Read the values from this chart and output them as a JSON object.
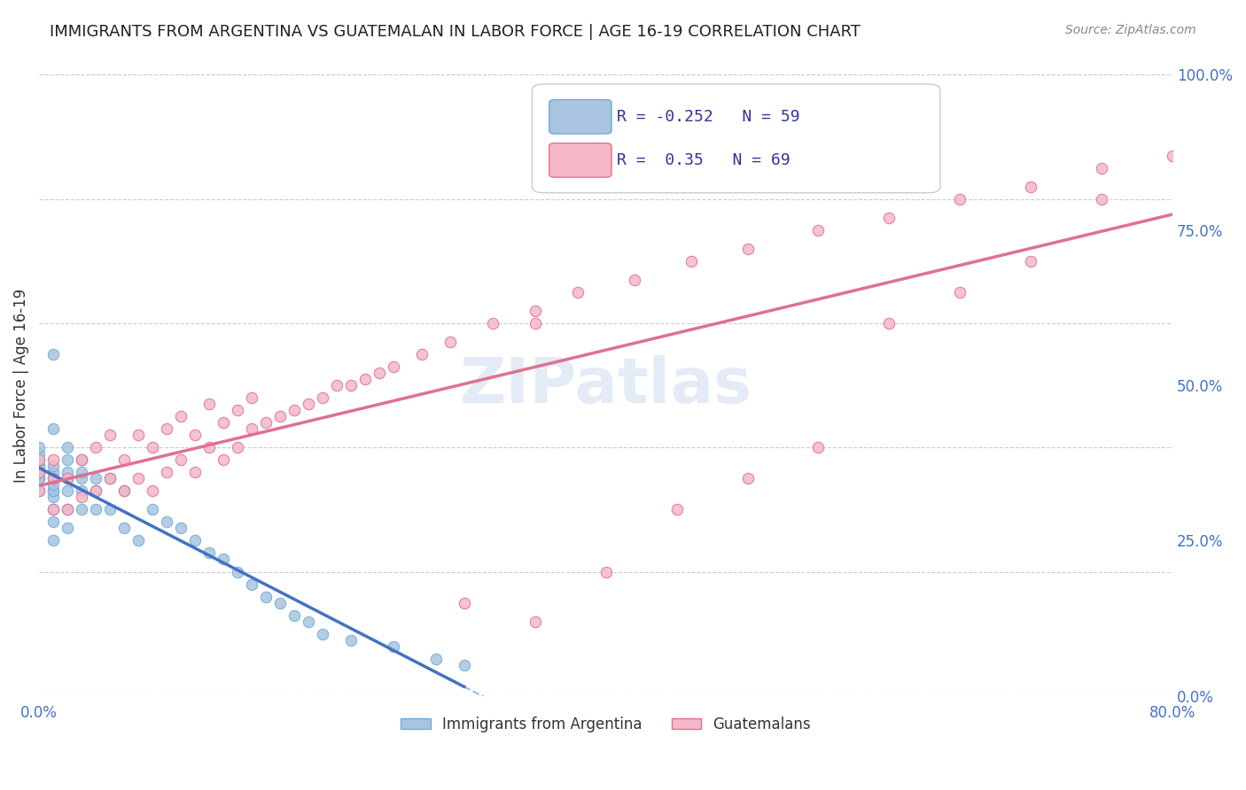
{
  "title": "IMMIGRANTS FROM ARGENTINA VS GUATEMALAN IN LABOR FORCE | AGE 16-19 CORRELATION CHART",
  "source": "Source: ZipAtlas.com",
  "xlabel": "",
  "ylabel": "In Labor Force | Age 16-19",
  "xlim": [
    0.0,
    0.8
  ],
  "ylim": [
    0.0,
    1.0
  ],
  "yticks": [
    0.0,
    0.25,
    0.5,
    0.75,
    1.0
  ],
  "ytick_labels": [
    "0.0%",
    "25.0%",
    "50.0%",
    "75.0%",
    "100.0%"
  ],
  "xticks": [
    0.0,
    0.1,
    0.2,
    0.3,
    0.4,
    0.5,
    0.6,
    0.7,
    0.8
  ],
  "xtick_labels": [
    "0.0%",
    "",
    "",
    "",
    "",
    "",
    "",
    "",
    "80.0%"
  ],
  "argentina_color": "#a8c4e0",
  "argentina_edge": "#6baed6",
  "guatemalan_color": "#f4b8c8",
  "guatemalan_edge": "#e07090",
  "argentina_R": -0.252,
  "argentina_N": 59,
  "guatemalan_R": 0.35,
  "guatemalan_N": 69,
  "legend_label_argentina": "Immigrants from Argentina",
  "legend_label_guatemalan": "Guatemalans",
  "watermark": "ZIPatlas",
  "argentina_scatter_x": [
    0.0,
    0.0,
    0.0,
    0.0,
    0.0,
    0.0,
    0.0,
    0.0,
    0.0,
    0.0,
    0.01,
    0.01,
    0.01,
    0.01,
    0.01,
    0.01,
    0.01,
    0.01,
    0.01,
    0.01,
    0.01,
    0.01,
    0.02,
    0.02,
    0.02,
    0.02,
    0.02,
    0.02,
    0.02,
    0.03,
    0.03,
    0.03,
    0.03,
    0.03,
    0.04,
    0.04,
    0.04,
    0.05,
    0.05,
    0.06,
    0.06,
    0.07,
    0.08,
    0.09,
    0.1,
    0.11,
    0.12,
    0.13,
    0.14,
    0.15,
    0.16,
    0.17,
    0.18,
    0.19,
    0.2,
    0.22,
    0.25,
    0.28,
    0.3
  ],
  "argentina_scatter_y": [
    0.33,
    0.35,
    0.35,
    0.36,
    0.36,
    0.37,
    0.37,
    0.38,
    0.39,
    0.4,
    0.25,
    0.28,
    0.3,
    0.32,
    0.33,
    0.33,
    0.34,
    0.35,
    0.36,
    0.37,
    0.43,
    0.55,
    0.27,
    0.3,
    0.33,
    0.35,
    0.36,
    0.38,
    0.4,
    0.3,
    0.33,
    0.35,
    0.36,
    0.38,
    0.3,
    0.33,
    0.35,
    0.3,
    0.35,
    0.27,
    0.33,
    0.25,
    0.3,
    0.28,
    0.27,
    0.25,
    0.23,
    0.22,
    0.2,
    0.18,
    0.16,
    0.15,
    0.13,
    0.12,
    0.1,
    0.09,
    0.08,
    0.06,
    0.05
  ],
  "guatemalan_scatter_x": [
    0.0,
    0.0,
    0.0,
    0.01,
    0.01,
    0.01,
    0.02,
    0.02,
    0.03,
    0.03,
    0.04,
    0.04,
    0.05,
    0.05,
    0.06,
    0.06,
    0.07,
    0.07,
    0.08,
    0.08,
    0.09,
    0.09,
    0.1,
    0.1,
    0.11,
    0.11,
    0.12,
    0.12,
    0.13,
    0.13,
    0.14,
    0.14,
    0.15,
    0.15,
    0.16,
    0.17,
    0.18,
    0.19,
    0.2,
    0.21,
    0.22,
    0.23,
    0.24,
    0.25,
    0.27,
    0.29,
    0.32,
    0.35,
    0.38,
    0.42,
    0.46,
    0.5,
    0.55,
    0.6,
    0.65,
    0.7,
    0.75,
    0.8,
    0.3,
    0.35,
    0.4,
    0.45,
    0.5,
    0.55,
    0.6,
    0.65,
    0.7,
    0.75,
    0.35
  ],
  "guatemalan_scatter_y": [
    0.33,
    0.36,
    0.38,
    0.3,
    0.35,
    0.38,
    0.3,
    0.35,
    0.32,
    0.38,
    0.33,
    0.4,
    0.35,
    0.42,
    0.33,
    0.38,
    0.35,
    0.42,
    0.33,
    0.4,
    0.36,
    0.43,
    0.38,
    0.45,
    0.36,
    0.42,
    0.4,
    0.47,
    0.38,
    0.44,
    0.4,
    0.46,
    0.43,
    0.48,
    0.44,
    0.45,
    0.46,
    0.47,
    0.48,
    0.5,
    0.5,
    0.51,
    0.52,
    0.53,
    0.55,
    0.57,
    0.6,
    0.62,
    0.65,
    0.67,
    0.7,
    0.72,
    0.75,
    0.77,
    0.8,
    0.82,
    0.85,
    0.87,
    0.15,
    0.12,
    0.2,
    0.3,
    0.35,
    0.4,
    0.6,
    0.65,
    0.7,
    0.8,
    0.6
  ],
  "title_color": "#222222",
  "axis_color": "#4472c4",
  "grid_color": "#cccccc",
  "trend_argentina_color": "#4472c4",
  "trend_guatemalan_color": "#e07090"
}
